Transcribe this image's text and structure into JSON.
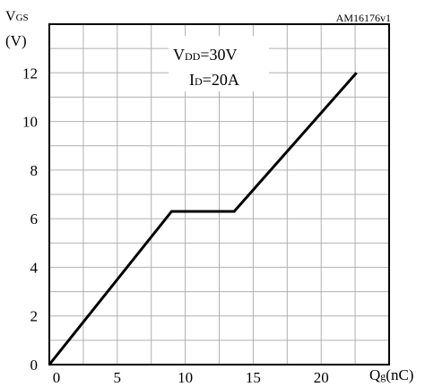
{
  "chart_data": {
    "type": "line",
    "code": "AM16176v1",
    "ylabel_main": "V",
    "ylabel_sub": "GS",
    "yunit": "(V)",
    "xlabel_main": "Q",
    "xlabel_sub": "g",
    "xunit": "(nC)",
    "annotations": [
      {
        "main": "V",
        "sub": "DD",
        "rest": "=30V"
      },
      {
        "main": "I",
        "sub": "D",
        "rest": "=20A"
      }
    ],
    "xlim": [
      0,
      25
    ],
    "ylim": [
      0,
      14
    ],
    "xticks": [
      0,
      5,
      10,
      15,
      20
    ],
    "yticks": [
      0,
      2,
      4,
      6,
      8,
      10,
      12
    ],
    "grid": true,
    "series": [
      {
        "x": [
          0,
          9.0,
          13.6,
          22.6
        ],
        "y": [
          0,
          6.3,
          6.3,
          12.0
        ]
      }
    ],
    "colors": {
      "line": "#000000",
      "grid": "#b0b0b0",
      "frame": "#000000"
    }
  }
}
